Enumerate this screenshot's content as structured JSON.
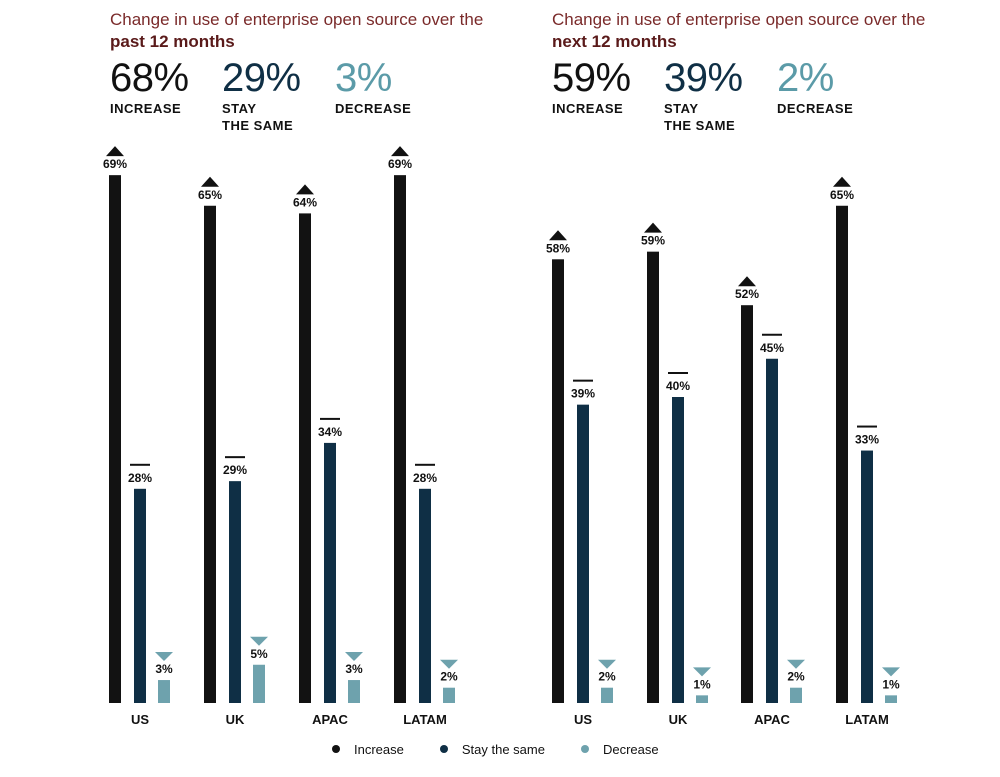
{
  "colors": {
    "increase": "#121212",
    "stay": "#0f2f45",
    "decrease": "#6ea2ad",
    "title": "#7a2a2a"
  },
  "panels": [
    {
      "title_prefix": "Change in use of enterprise open source over the ",
      "title_bold": "past 12 months",
      "stats": [
        {
          "value": "68%",
          "label_line1": "INCREASE",
          "label_line2": ""
        },
        {
          "value": "29%",
          "label_line1": "STAY",
          "label_line2": "THE SAME"
        },
        {
          "value": "3%",
          "label_line1": "DECREASE",
          "label_line2": ""
        }
      ]
    },
    {
      "title_prefix": "Change in use of enterprise open source over the ",
      "title_bold": "next 12 months",
      "stats": [
        {
          "value": "59%",
          "label_line1": "INCREASE",
          "label_line2": ""
        },
        {
          "value": "39%",
          "label_line1": "STAY",
          "label_line2": "THE SAME"
        },
        {
          "value": "2%",
          "label_line1": "DECREASE",
          "label_line2": ""
        }
      ]
    }
  ],
  "legend": [
    {
      "label": "Increase",
      "color_key": "increase"
    },
    {
      "label": "Stay the same",
      "color_key": "stay"
    },
    {
      "label": "Decrease",
      "color_key": "decrease"
    }
  ],
  "chart_data": [
    {
      "type": "bar",
      "categories": [
        "US",
        "UK",
        "APAC",
        "LATAM"
      ],
      "series": [
        {
          "name": "Increase",
          "values": [
            69,
            65,
            64,
            69
          ]
        },
        {
          "name": "Stay the same",
          "values": [
            28,
            29,
            34,
            28
          ]
        },
        {
          "name": "Decrease",
          "values": [
            3,
            5,
            3,
            2
          ]
        }
      ],
      "value_labels": {
        "Increase": [
          "69%",
          "65%",
          "64%",
          "69%"
        ],
        "Stay the same": [
          "28%",
          "29%",
          "34%",
          "28%"
        ],
        "Decrease": [
          "3%",
          "5%",
          "3%",
          "2%"
        ]
      },
      "ylim": [
        0,
        70
      ],
      "grid": false,
      "legend": "bottom"
    },
    {
      "type": "bar",
      "categories": [
        "US",
        "UK",
        "APAC",
        "LATAM"
      ],
      "series": [
        {
          "name": "Increase",
          "values": [
            58,
            59,
            52,
            65
          ]
        },
        {
          "name": "Stay the same",
          "values": [
            39,
            40,
            45,
            33
          ]
        },
        {
          "name": "Decrease",
          "values": [
            2,
            1,
            2,
            1
          ]
        }
      ],
      "value_labels": {
        "Increase": [
          "58%",
          "59%",
          "52%",
          "65%"
        ],
        "Stay the same": [
          "39%",
          "40%",
          "45%",
          "33%"
        ],
        "Decrease": [
          "2%",
          "1%",
          "2%",
          "1%"
        ]
      },
      "ylim": [
        0,
        70
      ],
      "grid": false,
      "legend": "bottom"
    }
  ]
}
